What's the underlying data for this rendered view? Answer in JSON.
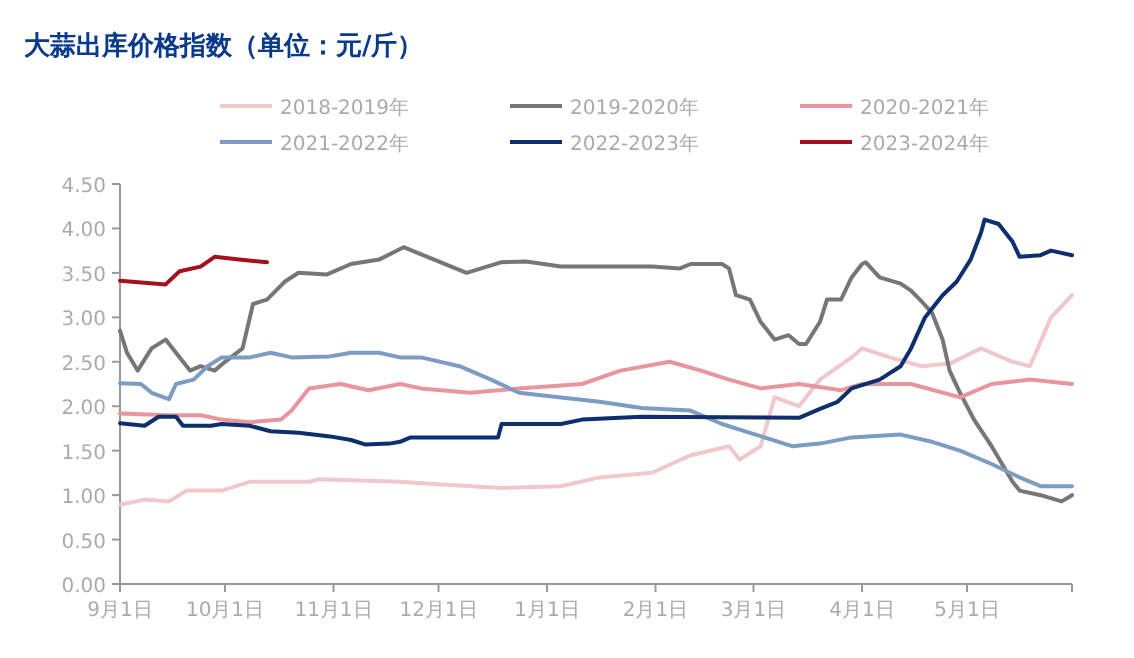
{
  "chart_data": {
    "type": "line",
    "title": "大蒜出库价格指数（单位：元/斤）",
    "legend": "top",
    "grid": false,
    "marker": "none",
    "line_style": "solid",
    "xlim": [
      "2022-09-01",
      "2023-05-31"
    ],
    "ylim": [
      0,
      4.5
    ],
    "xticks": [
      {
        "value": "2022-09-01",
        "label": "9月1日"
      },
      {
        "value": "2022-10-01",
        "label": "10月1日"
      },
      {
        "value": "2022-11-01",
        "label": "11月1日"
      },
      {
        "value": "2022-12-01",
        "label": "12月1日"
      },
      {
        "value": "2023-01-01",
        "label": "1月1日"
      },
      {
        "value": "2023-02-01",
        "label": "2月1日"
      },
      {
        "value": "2023-03-01",
        "label": "3月1日"
      },
      {
        "value": "2023-04-01",
        "label": "4月1日"
      },
      {
        "value": "2023-05-01",
        "label": "5月1日"
      }
    ],
    "yticks": [
      {
        "value": 0,
        "label": "0.00"
      },
      {
        "value": 0.5,
        "label": "0.50"
      },
      {
        "value": 1,
        "label": "1.00"
      },
      {
        "value": 1.5,
        "label": "1.50"
      },
      {
        "value": 2,
        "label": "2.00"
      },
      {
        "value": 2.5,
        "label": "2.50"
      },
      {
        "value": 3,
        "label": "3.00"
      },
      {
        "value": 3.5,
        "label": "3.50"
      },
      {
        "value": 4,
        "label": "4.00"
      },
      {
        "value": 4.5,
        "label": "4.50"
      }
    ],
    "series": [
      {
        "name": "2018-2019年",
        "color": "#f0c8cc",
        "x": [
          "2022-09-01",
          "2022-09-08",
          "2022-09-15",
          "2022-09-20",
          "2022-09-30",
          "2022-10-08",
          "2022-10-25",
          "2022-10-28",
          "2022-11-20",
          "2022-12-02",
          "2022-12-19",
          "2023-01-05",
          "2023-01-16",
          "2023-01-31",
          "2023-02-11",
          "2023-02-22",
          "2023-02-25",
          "2023-03-03",
          "2023-03-07",
          "2023-03-14",
          "2023-03-20",
          "2023-03-29",
          "2023-04-01",
          "2023-04-09",
          "2023-04-18",
          "2023-04-26",
          "2023-05-05",
          "2023-05-14",
          "2023-05-19",
          "2023-05-25",
          "2023-05-31"
        ],
        "values": [
          0.89,
          0.95,
          0.93,
          1.05,
          1.05,
          1.15,
          1.15,
          1.18,
          1.15,
          1.12,
          1.08,
          1.1,
          1.2,
          1.25,
          1.45,
          1.55,
          1.4,
          1.55,
          2.1,
          2.0,
          2.3,
          2.55,
          2.65,
          2.55,
          2.45,
          2.48,
          2.65,
          2.5,
          2.45,
          3.0,
          3.25
        ]
      },
      {
        "name": "2019-2020年",
        "color": "#767676",
        "x": [
          "2022-09-01",
          "2022-09-03",
          "2022-09-06",
          "2022-09-10",
          "2022-09-14",
          "2022-09-17",
          "2022-09-21",
          "2022-09-24",
          "2022-09-28",
          "2022-10-01",
          "2022-10-06",
          "2022-10-09",
          "2022-10-13",
          "2022-10-18",
          "2022-10-22",
          "2022-10-30",
          "2022-11-06",
          "2022-11-14",
          "2022-11-21",
          "2022-12-09",
          "2022-12-19",
          "2022-12-26",
          "2023-01-05",
          "2023-01-31",
          "2023-02-08",
          "2023-02-11",
          "2023-02-20",
          "2023-02-22",
          "2023-02-24",
          "2023-02-28",
          "2023-03-03",
          "2023-03-07",
          "2023-03-11",
          "2023-03-14",
          "2023-03-16",
          "2023-03-20",
          "2023-03-22",
          "2023-03-26",
          "2023-03-29",
          "2023-04-01",
          "2023-04-02",
          "2023-04-06",
          "2023-04-12",
          "2023-04-15",
          "2023-04-18",
          "2023-04-21",
          "2023-04-24",
          "2023-04-26",
          "2023-04-29",
          "2023-05-03",
          "2023-05-08",
          "2023-05-14",
          "2023-05-16",
          "2023-05-22",
          "2023-05-28",
          "2023-05-31"
        ],
        "values": [
          2.85,
          2.6,
          2.4,
          2.65,
          2.75,
          2.6,
          2.4,
          2.45,
          2.4,
          2.5,
          2.65,
          3.15,
          3.2,
          3.4,
          3.5,
          3.48,
          3.6,
          3.65,
          3.79,
          3.5,
          3.62,
          3.63,
          3.57,
          3.57,
          3.55,
          3.6,
          3.6,
          3.55,
          3.25,
          3.2,
          2.95,
          2.75,
          2.8,
          2.7,
          2.7,
          2.95,
          3.2,
          3.2,
          3.45,
          3.6,
          3.62,
          3.45,
          3.38,
          3.3,
          3.18,
          3.05,
          2.75,
          2.4,
          2.15,
          1.85,
          1.55,
          1.15,
          1.05,
          1.0,
          0.93,
          1.0
        ]
      },
      {
        "name": "2020-2021年",
        "color": "#e8959d",
        "x": [
          "2022-09-01",
          "2022-09-15",
          "2022-09-24",
          "2022-09-30",
          "2022-10-08",
          "2022-10-17",
          "2022-10-20",
          "2022-10-25",
          "2022-11-03",
          "2022-11-11",
          "2022-11-20",
          "2022-11-26",
          "2022-12-10",
          "2022-12-24",
          "2023-01-11",
          "2023-01-22",
          "2023-02-05",
          "2023-02-14",
          "2023-02-22",
          "2023-03-03",
          "2023-03-14",
          "2023-03-26",
          "2023-04-01",
          "2023-04-15",
          "2023-04-29",
          "2023-05-08",
          "2023-05-19",
          "2023-05-31"
        ],
        "values": [
          1.92,
          1.9,
          1.9,
          1.85,
          1.82,
          1.85,
          1.95,
          2.2,
          2.25,
          2.18,
          2.25,
          2.2,
          2.15,
          2.2,
          2.25,
          2.4,
          2.5,
          2.4,
          2.3,
          2.2,
          2.25,
          2.18,
          2.25,
          2.25,
          2.1,
          2.25,
          2.3,
          2.25
        ]
      },
      {
        "name": "2021-2022年",
        "color": "#7d9cc4",
        "x": [
          "2022-09-01",
          "2022-09-07",
          "2022-09-10",
          "2022-09-15",
          "2022-09-17",
          "2022-09-22",
          "2022-09-26",
          "2022-09-30",
          "2022-10-08",
          "2022-10-14",
          "2022-10-20",
          "2022-10-31",
          "2022-11-06",
          "2022-11-14",
          "2022-11-20",
          "2022-11-26",
          "2022-12-07",
          "2022-12-16",
          "2022-12-24",
          "2023-01-05",
          "2023-01-16",
          "2023-01-28",
          "2023-02-11",
          "2023-02-20",
          "2023-02-28",
          "2023-03-12",
          "2023-03-20",
          "2023-03-29",
          "2023-04-12",
          "2023-04-21",
          "2023-04-29",
          "2023-05-08",
          "2023-05-16",
          "2023-05-22",
          "2023-05-31"
        ],
        "values": [
          2.26,
          2.25,
          2.15,
          2.08,
          2.25,
          2.3,
          2.45,
          2.55,
          2.55,
          2.6,
          2.55,
          2.56,
          2.6,
          2.6,
          2.55,
          2.55,
          2.45,
          2.3,
          2.15,
          2.1,
          2.05,
          1.98,
          1.95,
          1.8,
          1.7,
          1.55,
          1.58,
          1.65,
          1.68,
          1.6,
          1.5,
          1.35,
          1.2,
          1.1,
          1.1
        ]
      },
      {
        "name": "2022-2023年",
        "color": "#0d2f6e",
        "x": [
          "2022-09-01",
          "2022-09-08",
          "2022-09-12",
          "2022-09-17",
          "2022-09-19",
          "2022-09-27",
          "2022-09-30",
          "2022-10-08",
          "2022-10-14",
          "2022-10-22",
          "2022-10-31",
          "2022-11-06",
          "2022-11-10",
          "2022-11-17",
          "2022-11-20",
          "2022-11-23",
          "2022-12-18",
          "2022-12-19",
          "2023-01-05",
          "2023-01-11",
          "2023-01-28",
          "2023-03-14",
          "2023-03-20",
          "2023-03-25",
          "2023-03-29",
          "2023-04-06",
          "2023-04-12",
          "2023-04-15",
          "2023-04-19",
          "2023-04-24",
          "2023-04-28",
          "2023-05-02",
          "2023-05-05",
          "2023-05-06",
          "2023-05-10",
          "2023-05-14",
          "2023-05-16",
          "2023-05-22",
          "2023-05-25",
          "2023-05-31"
        ],
        "values": [
          1.81,
          1.78,
          1.88,
          1.88,
          1.78,
          1.78,
          1.8,
          1.78,
          1.72,
          1.7,
          1.66,
          1.62,
          1.57,
          1.58,
          1.6,
          1.65,
          1.65,
          1.8,
          1.8,
          1.85,
          1.88,
          1.87,
          1.97,
          2.05,
          2.2,
          2.3,
          2.45,
          2.65,
          3.0,
          3.25,
          3.4,
          3.65,
          3.95,
          4.1,
          4.05,
          3.85,
          3.68,
          3.7,
          3.75,
          3.7
        ]
      },
      {
        "name": "2023-2024年",
        "color": "#a50f1e",
        "x": [
          "2022-09-01",
          "2022-09-14",
          "2022-09-18",
          "2022-09-24",
          "2022-09-28",
          "2022-10-05",
          "2022-10-13"
        ],
        "values": [
          3.41,
          3.37,
          3.52,
          3.57,
          3.68,
          3.65,
          3.62
        ]
      }
    ]
  }
}
